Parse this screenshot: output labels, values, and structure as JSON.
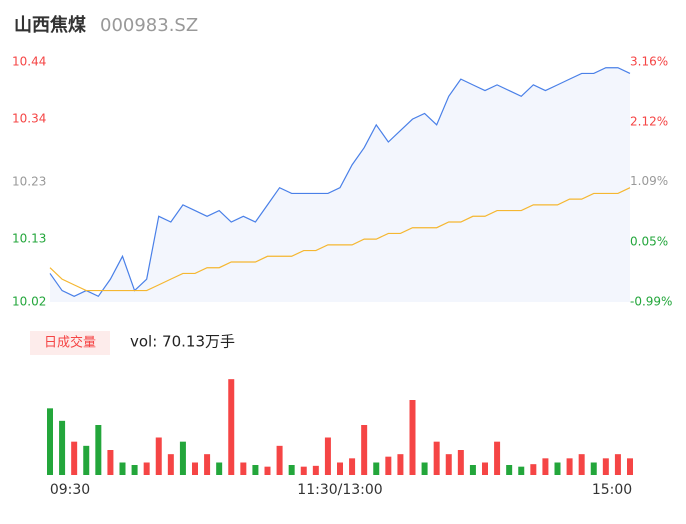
{
  "chart_data": [
    {
      "type": "line",
      "title": "山西焦煤",
      "subtitle": "000983.SZ",
      "x": [
        0,
        5,
        10,
        15,
        20,
        25,
        30,
        35,
        40,
        45,
        50,
        55,
        60,
        65,
        70,
        75,
        80,
        85,
        90,
        95,
        100,
        105,
        110,
        115,
        120,
        125,
        130,
        135,
        140,
        145,
        150,
        155,
        160,
        165,
        170,
        175,
        180,
        185,
        190,
        195,
        200,
        205,
        210,
        215,
        220,
        225,
        230,
        235,
        240
      ],
      "xlim": [
        0,
        240
      ],
      "ylim": [
        10.02,
        10.44
      ],
      "yticks": [
        10.44,
        10.34,
        10.23,
        10.13,
        10.02
      ],
      "ytick_colors": [
        "#f54545",
        "#f54545",
        "#999999",
        "#23a63b",
        "#23a63b"
      ],
      "y2lim": [
        -0.99,
        3.16
      ],
      "y2ticks": [
        {
          "value": 3.16,
          "label": "3.16%"
        },
        {
          "value": 2.12,
          "label": "2.12%"
        },
        {
          "value": 1.09,
          "label": "1.09%"
        },
        {
          "value": 0.05,
          "label": "0.05%"
        },
        {
          "value": -0.99,
          "label": "-0.99%"
        }
      ],
      "y2tick_colors": [
        "#f54545",
        "#f54545",
        "#999999",
        "#23a63b",
        "#23a63b"
      ],
      "area_color": "#f3f6fd",
      "series": [
        {
          "color": "#4a80e8",
          "values": [
            10.07,
            10.04,
            10.03,
            10.04,
            10.03,
            10.06,
            10.1,
            10.04,
            10.06,
            10.17,
            10.16,
            10.19,
            10.18,
            10.17,
            10.18,
            10.16,
            10.17,
            10.16,
            10.19,
            10.22,
            10.21,
            10.21,
            10.21,
            10.21,
            10.22,
            10.26,
            10.29,
            10.33,
            10.3,
            10.32,
            10.34,
            10.35,
            10.33,
            10.38,
            10.41,
            10.4,
            10.39,
            10.4,
            10.39,
            10.38,
            10.4,
            10.39,
            10.4,
            10.41,
            10.42,
            10.42,
            10.43,
            10.43,
            10.42
          ]
        },
        {
          "color": "#f5b731",
          "values": [
            10.08,
            10.06,
            10.05,
            10.04,
            10.04,
            10.04,
            10.04,
            10.04,
            10.04,
            10.05,
            10.06,
            10.07,
            10.07,
            10.08,
            10.08,
            10.09,
            10.09,
            10.09,
            10.1,
            10.1,
            10.1,
            10.11,
            10.11,
            10.12,
            10.12,
            10.12,
            10.13,
            10.13,
            10.14,
            10.14,
            10.15,
            10.15,
            10.15,
            10.16,
            10.16,
            10.17,
            10.17,
            10.18,
            10.18,
            10.18,
            10.19,
            10.19,
            10.19,
            10.2,
            10.2,
            10.21,
            10.21,
            10.21,
            10.22
          ]
        }
      ]
    },
    {
      "type": "bar",
      "legend_label": "日成交量",
      "title": "vol: 70.13万手",
      "xlim": [
        0,
        240
      ],
      "xticks": [
        {
          "value": 0,
          "label": "09:30"
        },
        {
          "value": 120,
          "label": "11:30/13:00"
        },
        {
          "value": 240,
          "label": "15:00"
        }
      ],
      "ylim": [
        0,
        12000
      ],
      "values": [
        8000,
        6500,
        4000,
        3500,
        6000,
        3000,
        1500,
        1200,
        1500,
        4500,
        2500,
        4000,
        1500,
        2500,
        1500,
        11500,
        1500,
        1200,
        1000,
        3500,
        1200,
        1000,
        1100,
        4500,
        1500,
        2000,
        6000,
        1500,
        2200,
        2500,
        9000,
        1500,
        4000,
        2500,
        3000,
        1200,
        1500,
        4000,
        1200,
        1000,
        1300,
        2000,
        1500,
        2000,
        2500,
        1500,
        2000,
        2500,
        2000
      ],
      "colors": [
        "#23a63b",
        "#23a63b",
        "#f54545",
        "#23a63b",
        "#23a63b",
        "#f54545",
        "#23a63b",
        "#23a63b",
        "#f54545",
        "#f54545",
        "#f54545",
        "#23a63b",
        "#f54545",
        "#f54545",
        "#23a63b",
        "#f54545",
        "#f54545",
        "#23a63b",
        "#f54545",
        "#f54545",
        "#23a63b",
        "#f54545",
        "#f54545",
        "#f54545",
        "#f54545",
        "#f54545",
        "#f54545",
        "#23a63b",
        "#f54545",
        "#f54545",
        "#f54545",
        "#23a63b",
        "#f54545",
        "#f54545",
        "#f54545",
        "#23a63b",
        "#f54545",
        "#f54545",
        "#23a63b",
        "#23a63b",
        "#f54545",
        "#f54545",
        "#23a63b",
        "#f54545",
        "#f54545",
        "#23a63b",
        "#f54545",
        "#f54545",
        "#f54545"
      ]
    }
  ]
}
